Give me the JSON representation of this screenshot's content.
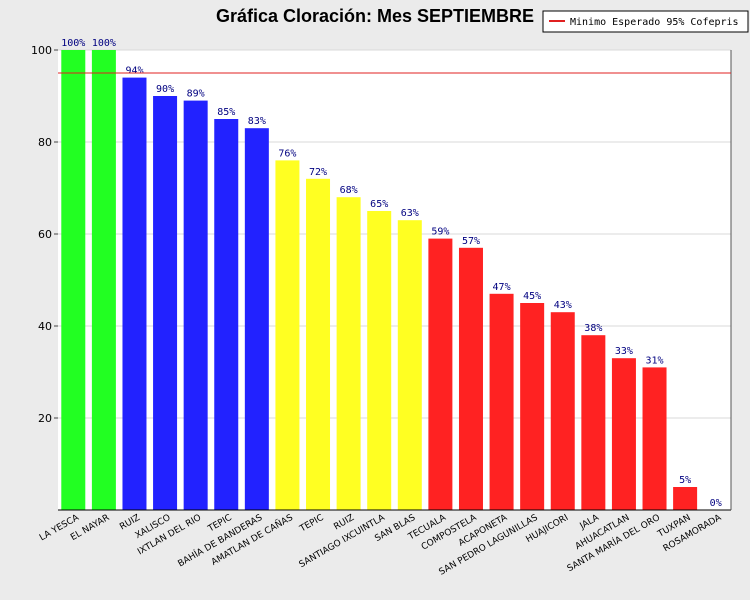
{
  "chart_data": {
    "type": "bar",
    "title": "Gráfica Cloración: Mes SEPTIEMBRE",
    "xlabel": "",
    "ylabel": "",
    "ylim": [
      0,
      100
    ],
    "yticks": [
      "20",
      "40",
      "60",
      "80",
      "100"
    ],
    "grid": true,
    "legend_position": "top-right",
    "reference_line": {
      "name": "Minimo Esperado 95% Cofepris",
      "value": 95,
      "color": "#e02020"
    },
    "categories": [
      "LA YESCA",
      "EL NAYAR",
      "RUIZ",
      "XALISCO",
      "IXTLAN DEL RIO",
      "TEPIC",
      "BAHÍA DE BANDERAS",
      "AMATLAN DE CAÑAS",
      "TEPIC",
      "RUIZ",
      "SANTIAGO IXCUINTLA",
      "SAN BLAS",
      "TECUALA",
      "COMPOSTELA",
      "ACAPONETA",
      "SAN PEDRO LAGUNILLAS",
      "HUAJICORI",
      "JALA",
      "AHUACATLAN",
      "SANTA MARÍA DEL ORO",
      "TUXPAN",
      "ROSAMORADA"
    ],
    "values": [
      100,
      100,
      94,
      90,
      89,
      85,
      83,
      76,
      72,
      68,
      65,
      63,
      59,
      57,
      47,
      45,
      43,
      38,
      33,
      31,
      5,
      0
    ],
    "value_labels": [
      "100%",
      "100%",
      "94%",
      "90%",
      "89%",
      "85%",
      "83%",
      "76%",
      "72%",
      "68%",
      "65%",
      "63%",
      "59%",
      "57%",
      "47%",
      "45%",
      "43%",
      "38%",
      "33%",
      "31%",
      "5%",
      "0%"
    ],
    "bar_colors": [
      "#22ff22",
      "#22ff22",
      "#2222ff",
      "#2222ff",
      "#2222ff",
      "#2222ff",
      "#2222ff",
      "#ffff22",
      "#ffff22",
      "#ffff22",
      "#ffff22",
      "#ffff22",
      "#ff2222",
      "#ff2222",
      "#ff2222",
      "#ff2222",
      "#ff2222",
      "#ff2222",
      "#ff2222",
      "#ff2222",
      "#ff2222",
      "#ff2222"
    ],
    "value_label_color": "#000080"
  }
}
